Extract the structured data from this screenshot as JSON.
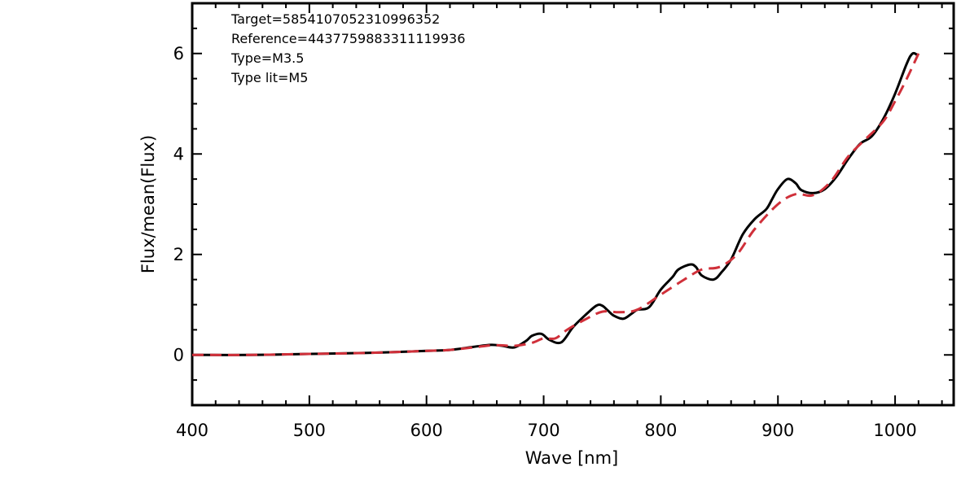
{
  "chart_data": {
    "type": "line",
    "xlabel": "Wave [nm]",
    "ylabel": "Flux/mean(Flux)",
    "xlim": [
      400,
      1050
    ],
    "ylim": [
      -1,
      7
    ],
    "xticks": [
      400,
      500,
      600,
      700,
      800,
      900,
      1000
    ],
    "yticks": [
      0,
      2,
      4,
      6
    ],
    "grid": false,
    "annotations": [
      "Target=5854107052310996352",
      "Reference=4437759883311119936",
      "Type=M3.5",
      "Type lit=M5"
    ],
    "series": [
      {
        "color": "#000000",
        "style": "solid",
        "x": [
          400,
          450,
          500,
          550,
          600,
          620,
          640,
          655,
          665,
          675,
          685,
          690,
          698,
          705,
          715,
          725,
          735,
          745,
          750,
          755,
          760,
          768,
          775,
          780,
          790,
          800,
          810,
          815,
          825,
          830,
          835,
          845,
          852,
          860,
          870,
          880,
          890,
          895,
          900,
          908,
          915,
          920,
          930,
          940,
          950,
          960,
          970,
          980,
          990,
          1000,
          1010,
          1015,
          1020
        ],
        "y": [
          0.0,
          0.0,
          0.02,
          0.04,
          0.08,
          0.1,
          0.16,
          0.2,
          0.18,
          0.15,
          0.28,
          0.38,
          0.42,
          0.3,
          0.25,
          0.55,
          0.78,
          0.98,
          0.98,
          0.88,
          0.78,
          0.72,
          0.82,
          0.9,
          0.95,
          1.3,
          1.55,
          1.7,
          1.8,
          1.75,
          1.58,
          1.5,
          1.65,
          1.9,
          2.4,
          2.7,
          2.9,
          3.1,
          3.3,
          3.5,
          3.42,
          3.28,
          3.22,
          3.3,
          3.55,
          3.9,
          4.2,
          4.35,
          4.7,
          5.2,
          5.8,
          6.0,
          5.95
        ]
      },
      {
        "color": "#d0303a",
        "style": "dashed",
        "x": [
          400,
          450,
          500,
          550,
          600,
          620,
          640,
          655,
          665,
          675,
          690,
          700,
          710,
          720,
          735,
          750,
          765,
          780,
          800,
          820,
          835,
          850,
          865,
          880,
          900,
          915,
          930,
          945,
          960,
          975,
          990,
          1000,
          1010,
          1020
        ],
        "y": [
          0.0,
          0.0,
          0.02,
          0.04,
          0.08,
          0.1,
          0.15,
          0.19,
          0.19,
          0.18,
          0.24,
          0.33,
          0.33,
          0.5,
          0.7,
          0.86,
          0.85,
          0.9,
          1.2,
          1.5,
          1.7,
          1.75,
          2.0,
          2.5,
          3.0,
          3.2,
          3.18,
          3.45,
          3.95,
          4.3,
          4.65,
          5.05,
          5.5,
          6.0
        ]
      }
    ]
  }
}
